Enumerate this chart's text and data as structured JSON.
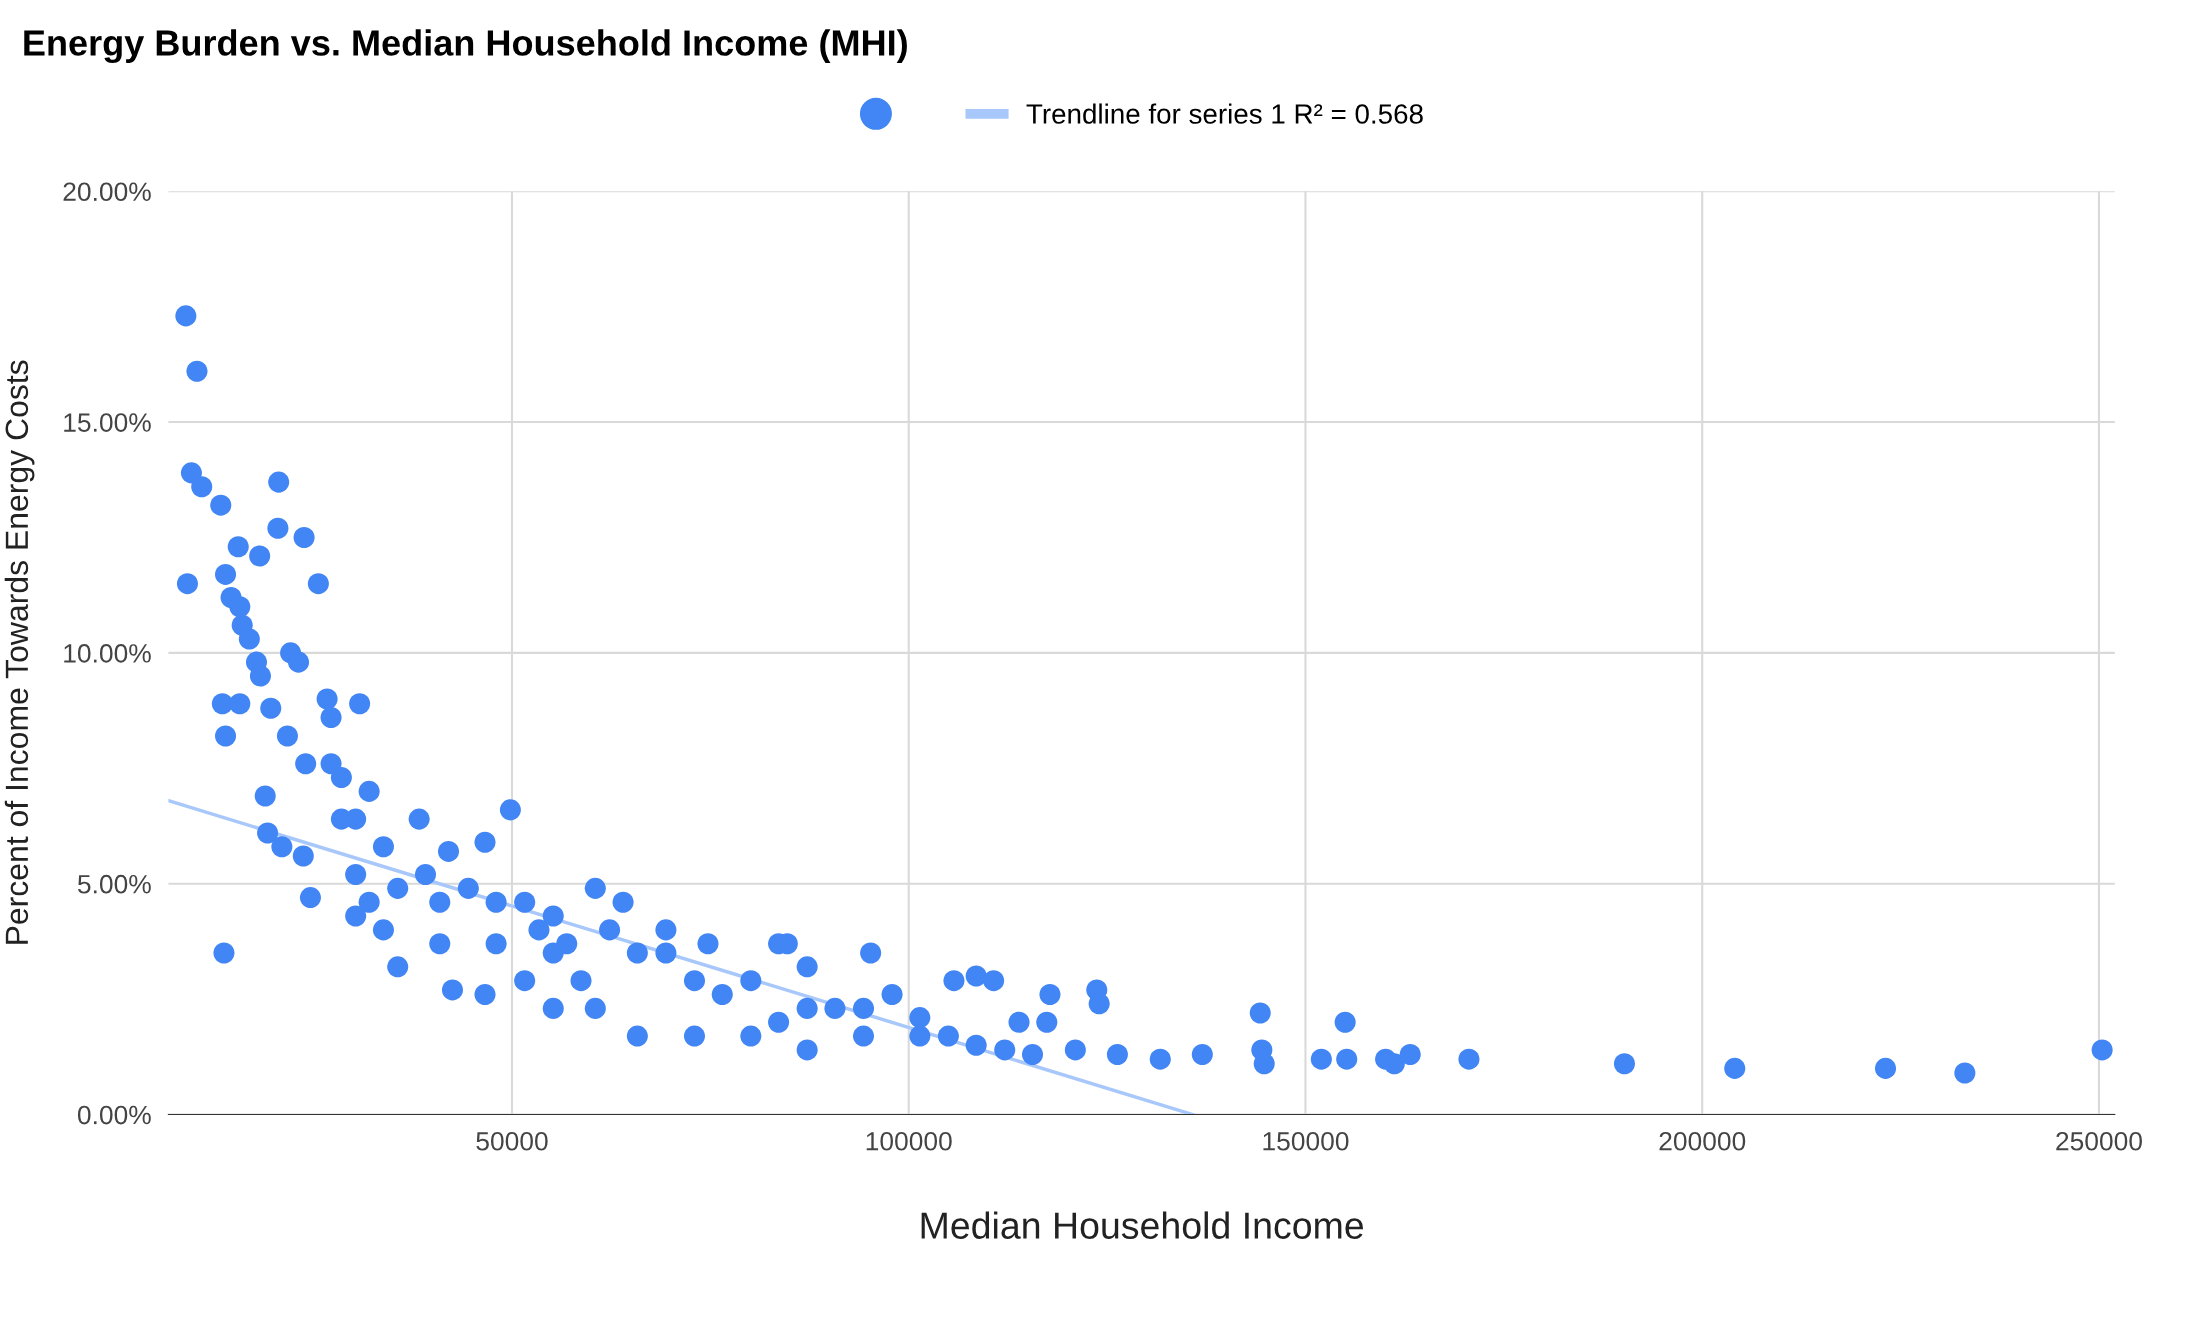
{
  "chart_data": {
    "type": "scatter",
    "title": "Energy Burden vs. Median Household Income (MHI)",
    "xlabel": "Median Household Income",
    "ylabel": "Percent of Income Towards Energy Costs",
    "xlim": [
      6700,
      252000
    ],
    "xticks": [
      50000,
      100000,
      150000,
      200000,
      250000
    ],
    "ylim": [
      0,
      20
    ],
    "yticks": [
      {
        "value": 0,
        "label": "0.00%"
      },
      {
        "value": 5,
        "label": "5.00%"
      },
      {
        "value": 10,
        "label": "10.00%"
      },
      {
        "value": 15,
        "label": "15.00%"
      },
      {
        "value": 20,
        "label": "20.00%"
      }
    ],
    "grid": true,
    "legend": "top",
    "series": [
      {
        "marker": "circle",
        "color": "#4285f4",
        "x": [
          8900,
          10300,
          9600,
          10900,
          13300,
          9100,
          15500,
          18200,
          20600,
          20500,
          23800,
          25600,
          13900,
          14600,
          15700,
          16000,
          16900,
          17800,
          22100,
          23100,
          13500,
          13900,
          15700,
          18900,
          19200,
          18300,
          19600,
          21700,
          26700,
          30800,
          27200,
          13700,
          24600,
          23700,
          21000,
          24000,
          28500,
          30300,
          32000,
          33800,
          35600,
          38300,
          42500,
          46600,
          49800,
          46600,
          42000,
          60500,
          40900,
          48000,
          53400,
          55200,
          58700,
          65800,
          64000,
          69400,
          74700,
          76500,
          65800,
          83600,
          84700,
          87200,
          95200,
          90700,
          83600,
          94300,
          97900,
          101400,
          105700,
          108500,
          110700,
          105000,
          112100,
          113900,
          117800,
          117400,
          123700,
          124000,
          121000,
          126300,
          131700,
          137000,
          144300,
          144500,
          144800,
          152000,
          155000,
          155200,
          160100,
          161200,
          163200,
          170600,
          190200,
          204100,
          223100,
          233100,
          250400,
          27200,
          28500,
          30300,
          32000,
          33800,
          35600,
          39100,
          40900,
          44500,
          48000,
          51600,
          55200,
          56900,
          62300,
          69400,
          73000,
          80100,
          87200,
          94300,
          101400,
          108500,
          115600,
          51600,
          55200,
          60500,
          73000,
          80100,
          87200,
          30300
        ],
        "values": [
          17.3,
          16.1,
          13.9,
          13.6,
          13.2,
          11.5,
          12.3,
          12.1,
          13.7,
          12.7,
          12.5,
          11.5,
          11.7,
          11.2,
          11.0,
          10.6,
          10.3,
          9.8,
          10.0,
          9.8,
          8.9,
          8.2,
          8.9,
          6.9,
          6.1,
          9.5,
          8.8,
          8.2,
          9.0,
          8.9,
          8.6,
          3.5,
          4.7,
          5.6,
          5.8,
          7.6,
          7.3,
          6.4,
          7.0,
          5.8,
          3.2,
          6.4,
          2.7,
          2.6,
          6.6,
          5.9,
          5.7,
          4.9,
          4.6,
          4.6,
          4.0,
          3.5,
          2.9,
          3.5,
          4.6,
          4.0,
          3.7,
          2.6,
          1.7,
          3.7,
          3.7,
          3.2,
          3.5,
          2.3,
          2.0,
          1.7,
          2.6,
          2.1,
          2.9,
          3.0,
          2.9,
          1.7,
          1.4,
          2.0,
          2.6,
          2.0,
          2.7,
          2.4,
          1.4,
          1.3,
          1.2,
          1.3,
          2.2,
          1.4,
          1.1,
          1.2,
          2.0,
          1.2,
          1.2,
          1.1,
          1.3,
          1.2,
          1.1,
          1.0,
          1.0,
          0.9,
          1.4,
          7.6,
          6.4,
          5.2,
          4.6,
          4.0,
          4.9,
          5.2,
          3.7,
          4.9,
          3.7,
          4.6,
          4.3,
          3.7,
          4.0,
          3.5,
          2.9,
          2.9,
          2.3,
          2.3,
          1.7,
          1.5,
          1.3,
          2.9,
          2.3,
          2.3,
          1.7,
          1.7,
          1.4,
          4.3
        ]
      },
      {
        "type": "line",
        "marker": "none",
        "name": "Trendline for series 1 R² = 0.568",
        "color": "#a8c7fa",
        "x": [
          6700,
          135800
        ],
        "values": [
          6.8,
          0
        ]
      }
    ]
  }
}
